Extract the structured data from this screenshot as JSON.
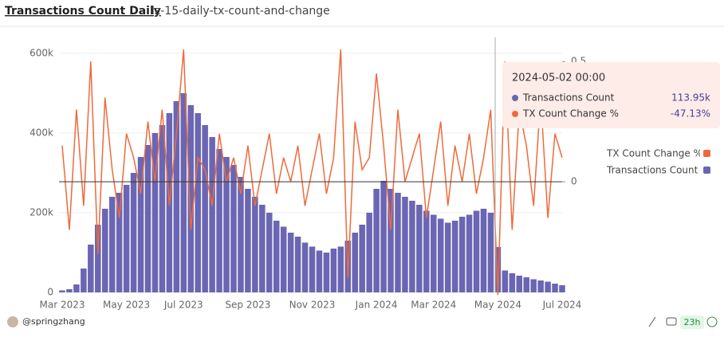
{
  "header": {
    "title": "Transactions Count Daily",
    "query": "lz-15-daily-tx-count-and-change"
  },
  "chart_data": {
    "type": "bar-line",
    "categories": [
      "Mar 2023",
      null,
      null,
      null,
      null,
      null,
      null,
      null,
      null,
      "May 2023",
      null,
      null,
      null,
      null,
      null,
      null,
      null,
      "Jul 2023",
      null,
      null,
      null,
      null,
      null,
      null,
      null,
      null,
      "Sep 2023",
      null,
      null,
      null,
      null,
      null,
      null,
      null,
      null,
      "Nov 2023",
      null,
      null,
      null,
      null,
      null,
      null,
      null,
      null,
      "Jan 2024",
      null,
      null,
      null,
      null,
      null,
      null,
      null,
      "Mar 2024",
      null,
      null,
      null,
      null,
      null,
      null,
      null,
      null,
      "May 2024",
      null,
      null,
      null,
      null,
      null,
      null,
      null,
      null,
      "Jul 2024"
    ],
    "series": [
      {
        "name": "Transactions Count",
        "color": "#6a66b3",
        "type": "bar",
        "values": [
          5000,
          8000,
          20000,
          60000,
          120000,
          170000,
          210000,
          240000,
          250000,
          270000,
          300000,
          340000,
          370000,
          400000,
          420000,
          450000,
          480000,
          500000,
          470000,
          450000,
          420000,
          390000,
          360000,
          340000,
          320000,
          290000,
          260000,
          240000,
          220000,
          200000,
          180000,
          165000,
          150000,
          140000,
          125000,
          115000,
          105000,
          100000,
          110000,
          115000,
          130000,
          150000,
          170000,
          200000,
          260000,
          280000,
          260000,
          250000,
          240000,
          230000,
          220000,
          205000,
          195000,
          185000,
          175000,
          180000,
          190000,
          195000,
          205000,
          210000,
          200000,
          113950,
          55000,
          48000,
          42000,
          38000,
          33000,
          30000,
          27000,
          22000,
          18000
        ]
      },
      {
        "name": "TX Count Change %",
        "color": "#ee6a3c",
        "type": "line",
        "axis": "y2",
        "values": [
          0.15,
          -0.2,
          0.3,
          -0.1,
          0.5,
          -0.3,
          0.35,
          0.05,
          -0.15,
          0.2,
          0.1,
          -0.05,
          0.25,
          0.0,
          0.3,
          -0.1,
          0.2,
          0.55,
          -0.2,
          0.1,
          0.05,
          -0.1,
          0.2,
          0.0,
          0.1,
          -0.05,
          0.15,
          -0.1,
          0.05,
          0.2,
          -0.05,
          0.1,
          0.0,
          0.15,
          -0.1,
          0.05,
          0.2,
          -0.05,
          0.1,
          0.55,
          -0.4,
          0.25,
          0.05,
          0.1,
          0.45,
          0.15,
          -0.2,
          0.3,
          0.0,
          0.1,
          0.2,
          -0.15,
          0.05,
          0.25,
          -0.1,
          0.15,
          0.0,
          0.2,
          -0.05,
          0.1,
          0.3,
          -0.4713,
          0.5,
          -0.2,
          0.3,
          0.15,
          -0.1,
          0.35,
          -0.15,
          0.2,
          0.1
        ]
      }
    ],
    "ylim": [
      0,
      640000
    ],
    "yticks": [
      0,
      {
        "value": 200000,
        "label": "200k"
      },
      {
        "value": 400000,
        "label": "400k"
      },
      {
        "value": 600000,
        "label": "600k"
      }
    ],
    "y2lim": [
      -0.46,
      0.6
    ],
    "y2ticks": [
      0,
      0.5
    ],
    "grid": true
  },
  "tooltip": {
    "date": "2024-05-02 00:00",
    "rows": [
      {
        "name": "Transactions Count",
        "value": "113.95k"
      },
      {
        "name": "TX Count Change %",
        "value": "-47.13%"
      }
    ]
  },
  "footer": {
    "author": "@springzhang",
    "age": "23h"
  }
}
